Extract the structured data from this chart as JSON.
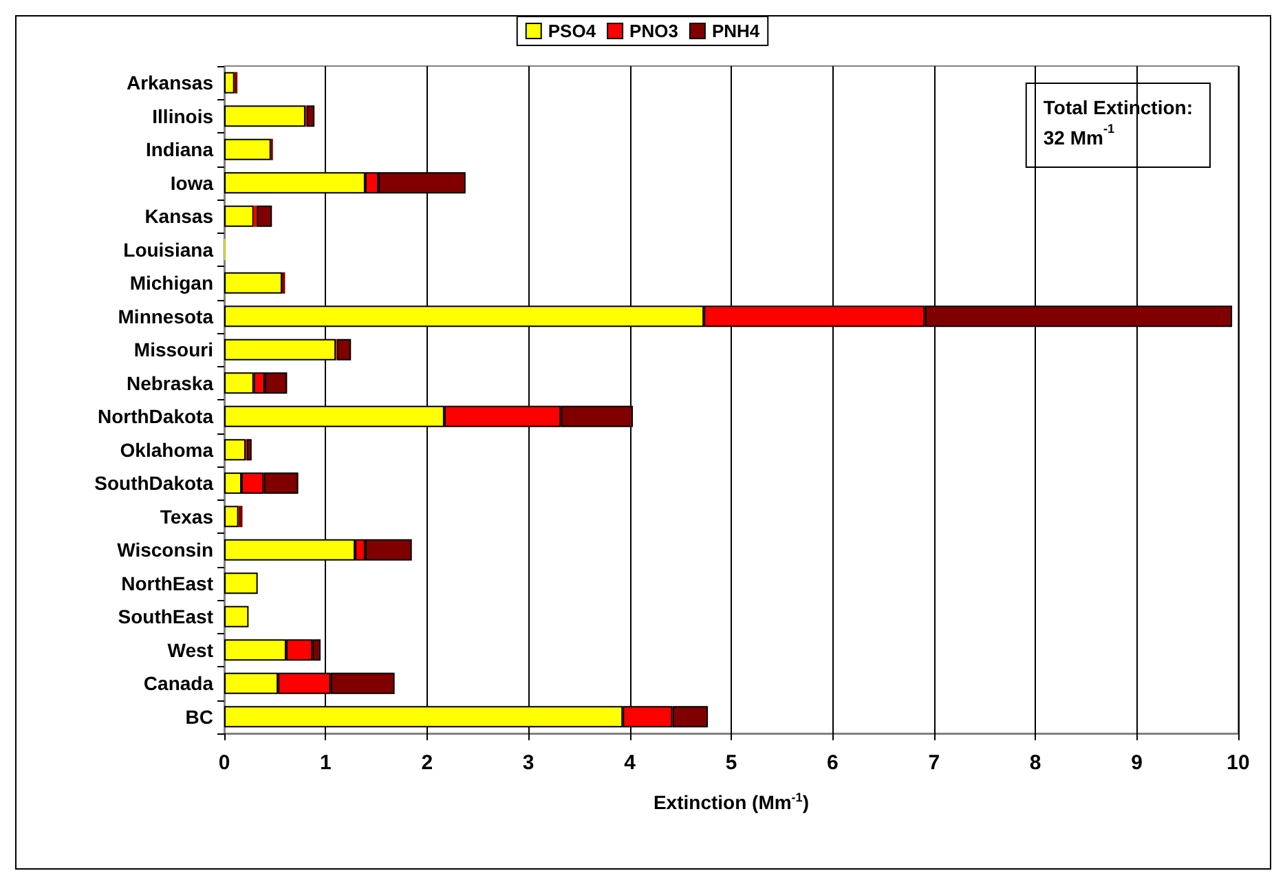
{
  "chart_data": {
    "type": "bar",
    "orientation": "horizontal",
    "stacked": true,
    "xlabel": "Extinction (Mm$^{-1}$)",
    "categories": [
      "Arkansas",
      "Illinois",
      "Indiana",
      "Iowa",
      "Kansas",
      "Louisiana",
      "Michigan",
      "Minnesota",
      "Missouri",
      "Nebraska",
      "NorthDakota",
      "Oklahoma",
      "SouthDakota",
      "Texas",
      "Wisconsin",
      "NorthEast",
      "SouthEast",
      "West",
      "Canada",
      "BC"
    ],
    "series": [
      {
        "name": "PSO4",
        "color": "#ffff00",
        "values": [
          0.1,
          0.8,
          0.46,
          1.39,
          0.29,
          0.01,
          0.57,
          4.73,
          1.1,
          0.29,
          2.17,
          0.21,
          0.17,
          0.14,
          1.29,
          0.33,
          0.24,
          0.61,
          0.53,
          3.93
        ]
      },
      {
        "name": "PNO3",
        "color": "#ff0000",
        "values": [
          0,
          0.01,
          0,
          0.13,
          0.03,
          0,
          0,
          2.18,
          0.01,
          0.11,
          1.15,
          0.01,
          0.22,
          0,
          0.1,
          0,
          0,
          0.26,
          0.52,
          0.49
        ]
      },
      {
        "name": "PNH4",
        "color": "#800000",
        "values": [
          0.03,
          0.08,
          0.02,
          0.86,
          0.15,
          0,
          0.03,
          3.03,
          0.14,
          0.22,
          0.71,
          0.05,
          0.34,
          0.04,
          0.46,
          0,
          0,
          0.08,
          0.63,
          0.35
        ]
      }
    ],
    "xlim": [
      0,
      10
    ],
    "xticks": [
      0,
      1,
      2,
      3,
      4,
      5,
      6,
      7,
      8,
      9,
      10
    ],
    "grid": "x",
    "legend": "top",
    "annotations": [
      "Total Extinction:\n32 Mm$^{-1}$"
    ]
  }
}
